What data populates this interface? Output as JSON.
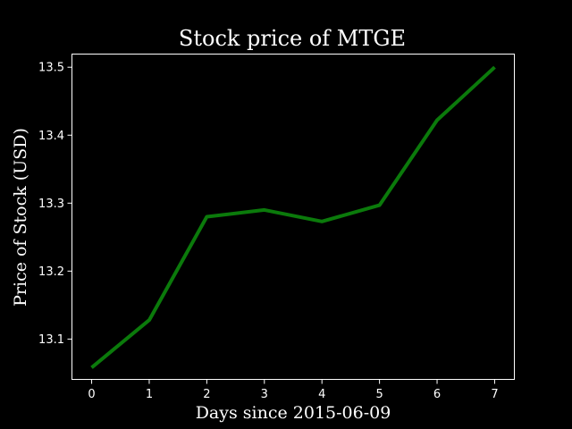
{
  "chart_data": {
    "type": "line",
    "title": "Stock price of MTGE",
    "xlabel": "Days since 2015-06-09",
    "ylabel": "Price of Stock (USD)",
    "x": [
      0,
      1,
      2,
      3,
      4,
      5,
      6,
      7
    ],
    "x_ticks": [
      0,
      1,
      2,
      3,
      4,
      5,
      6,
      7
    ],
    "y_ticks": [
      13.1,
      13.2,
      13.3,
      13.4,
      13.5
    ],
    "xlim": [
      -0.35,
      7.35
    ],
    "ylim": [
      13.04,
      13.52
    ],
    "series": [
      {
        "values": [
          13.058,
          13.128,
          13.28,
          13.29,
          13.273,
          13.297,
          13.422,
          13.5
        ],
        "color": "#0b7a0b"
      }
    ],
    "grid": false,
    "background": "#000000",
    "foreground": "#ffffff"
  }
}
